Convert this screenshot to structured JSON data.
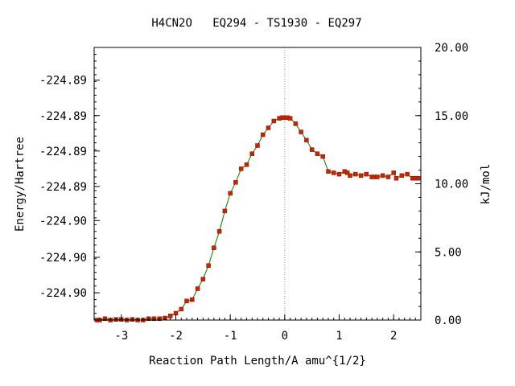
{
  "chart_data": {
    "type": "scatter",
    "title": "H4CN2O   EQ294 - TS1930 - EQ297",
    "xlabel": "Reaction Path Length/A amu^{1/2}",
    "ylabel_left": "Energy/Hartree",
    "ylabel_right": "kJ/mol",
    "xlim": [
      -3.5,
      2.5
    ],
    "ylim_kj": [
      0,
      20
    ],
    "x_ticks": [
      -3,
      -2,
      -1,
      0,
      1,
      2
    ],
    "x_tick_labels": [
      "-3",
      "-2",
      "-1",
      "0",
      "1",
      "2"
    ],
    "left_tick_values_kj": [
      2.0,
      4.6,
      7.3,
      9.8,
      12.4,
      15.0,
      17.6
    ],
    "left_tick_labels": [
      "-224.90",
      "-224.90",
      "-224.90",
      "-224.89",
      "-224.89",
      "-224.89",
      "-224.89"
    ],
    "right_tick_values_kj": [
      0,
      5,
      10,
      15,
      20
    ],
    "right_tick_labels": [
      "0.00",
      "5.00",
      "10.00",
      "15.00",
      "20.00"
    ],
    "ts_marker_x": 0,
    "grid": false,
    "line_color": "#008000",
    "marker_color": "#cc2200",
    "points": {
      "x": [
        -3.45,
        -3.4,
        -3.3,
        -3.2,
        -3.1,
        -3.0,
        -2.9,
        -2.8,
        -2.7,
        -2.6,
        -2.5,
        -2.4,
        -2.3,
        -2.2,
        -2.1,
        -2.0,
        -1.9,
        -1.8,
        -1.7,
        -1.6,
        -1.5,
        -1.4,
        -1.3,
        -1.2,
        -1.1,
        -1.0,
        -0.9,
        -0.8,
        -0.7,
        -0.6,
        -0.5,
        -0.4,
        -0.3,
        -0.2,
        -0.1,
        -0.05,
        0.0,
        0.05,
        0.1,
        0.2,
        0.3,
        0.4,
        0.5,
        0.6,
        0.7,
        0.8,
        0.9,
        1.0,
        1.1,
        1.15,
        1.2,
        1.3,
        1.4,
        1.5,
        1.6,
        1.65,
        1.7,
        1.8,
        1.9,
        2.0,
        2.05,
        2.15,
        2.25,
        2.35,
        2.4,
        2.45
      ],
      "y": [
        0.0,
        0.0,
        0.1,
        0.0,
        0.05,
        0.05,
        0.0,
        0.05,
        0.0,
        0.0,
        0.1,
        0.1,
        0.1,
        0.15,
        0.3,
        0.5,
        0.8,
        1.4,
        1.5,
        2.3,
        3.0,
        4.0,
        5.3,
        6.5,
        8.0,
        9.3,
        10.1,
        11.1,
        11.4,
        12.2,
        12.8,
        13.6,
        14.1,
        14.6,
        14.8,
        14.85,
        14.85,
        14.85,
        14.8,
        14.4,
        13.8,
        13.2,
        12.5,
        12.2,
        12.0,
        10.9,
        10.8,
        10.7,
        10.9,
        10.8,
        10.6,
        10.7,
        10.6,
        10.7,
        10.5,
        10.5,
        10.5,
        10.6,
        10.5,
        10.8,
        10.4,
        10.6,
        10.7,
        10.4,
        10.4,
        10.4
      ]
    }
  }
}
